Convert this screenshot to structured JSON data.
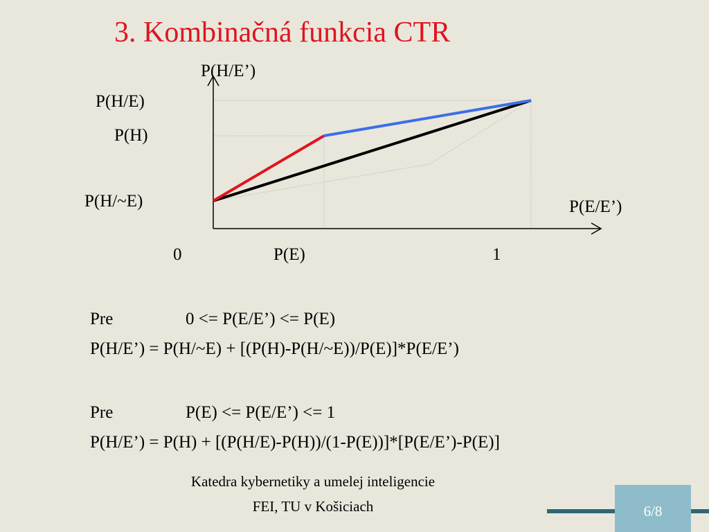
{
  "header": {
    "title": "3. Kombinačná funkcia CTR"
  },
  "diagram": {
    "y_axis_label": "P(H/E’)",
    "x_axis_label": "P(E/E’)",
    "y_labels": [
      "P(H/E)",
      "P(H)",
      "P(H/~E)"
    ],
    "x_labels": [
      "0",
      "P(E)",
      "1"
    ]
  },
  "rules": [
    {
      "keyword": "Pre",
      "condition": "0 <= P(E/E’) <= P(E)",
      "formula": "P(H/E’) = P(H/~E) + [(P(H)-P(H/~E))/P(E)]*P(E/E’)"
    },
    {
      "keyword": "Pre",
      "condition": "P(E) <= P(E/E’) <= 1",
      "formula": "P(H/E’) = P(H) + [(P(H/E)-P(H))/(1-P(E))]*[P(E/E’)-P(E)]"
    }
  ],
  "footer": {
    "lines": [
      "Katedra kybernetiky a umelej inteligencie",
      "FEI, TU v Košiciach"
    ],
    "page": "6/8"
  }
}
